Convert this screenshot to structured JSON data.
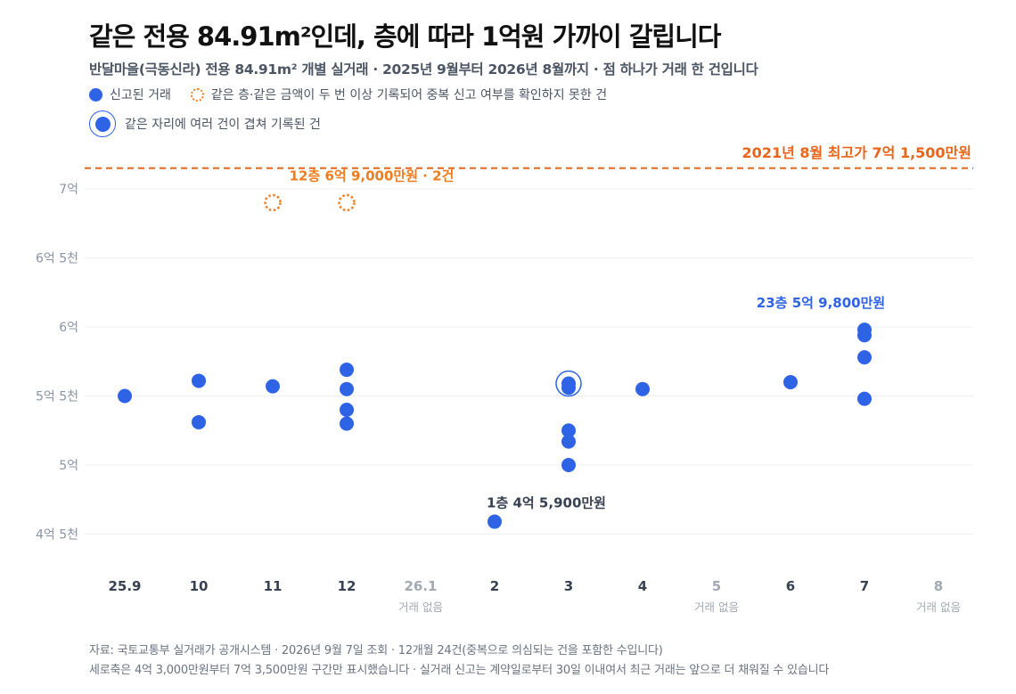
{
  "title": "같은 전용 84.91m²인데, 층에 따라 1억원 가까이 갈립니다",
  "subtitle": "반달마을(극동신라) 전용 84.91m² 개별 실거래 · 2025년 9월부터 2026년 8월까지 · 점 하나가 거래 한 건입니다",
  "legend": [
    {
      "icon": "filled-dot",
      "label": "신고된 거래"
    },
    {
      "icon": "dashed-circle",
      "label": "같은 층·같은 금액이 두 번 이상 기록되어 중복 신고 여부를 확인하지 못한 건"
    },
    {
      "icon": "ringed-dot",
      "label": "같은 자리에 여러 건이 겹쳐 기록된 건"
    }
  ],
  "colors": {
    "reported": "#2f63e6",
    "duplicate": "#ef7d1f",
    "peak": "#e8651a",
    "grid": "#eef0f3"
  },
  "notes": [
    "자료: 국토교통부 실거래가 공개시스템 · 2026년 9월 7일 조회 · 12개월 24건(중복으로 의심되는 건을 포함한 수입니다)",
    "세로축은 4억 3,000만원부터 7억 3,500만원 구간만 표시했습니다 · 실거래 신고는 계약일로부터 30일 이내여서 최근 거래는 앞으로 더 채워질 수 있습니다"
  ],
  "chart_data": {
    "type": "scatter",
    "y_unit": "만원",
    "ylim": [
      43000,
      73500
    ],
    "y_ticks": [
      {
        "value": 45000,
        "label": "4억 5천"
      },
      {
        "value": 50000,
        "label": "5억"
      },
      {
        "value": 55000,
        "label": "5억 5천"
      },
      {
        "value": 60000,
        "label": "6억"
      },
      {
        "value": 65000,
        "label": "6억 5천"
      },
      {
        "value": 70000,
        "label": "7억"
      }
    ],
    "grid": true,
    "categories": [
      {
        "label": "25.9",
        "sublabel": "",
        "has_data": true
      },
      {
        "label": "10",
        "sublabel": "",
        "has_data": true
      },
      {
        "label": "11",
        "sublabel": "",
        "has_data": true
      },
      {
        "label": "12",
        "sublabel": "",
        "has_data": true
      },
      {
        "label": "26.1",
        "sublabel": "거래 없음",
        "has_data": false
      },
      {
        "label": "2",
        "sublabel": "",
        "has_data": true
      },
      {
        "label": "3",
        "sublabel": "",
        "has_data": true
      },
      {
        "label": "4",
        "sublabel": "",
        "has_data": true
      },
      {
        "label": "5",
        "sublabel": "거래 없음",
        "has_data": false
      },
      {
        "label": "6",
        "sublabel": "",
        "has_data": true
      },
      {
        "label": "7",
        "sublabel": "",
        "has_data": true
      },
      {
        "label": "8",
        "sublabel": "거래 없음",
        "has_data": false
      }
    ],
    "points": [
      {
        "month": "25.9",
        "value": 55000,
        "kind": "reported"
      },
      {
        "month": "10",
        "value": 56100,
        "kind": "reported"
      },
      {
        "month": "10",
        "value": 53100,
        "kind": "reported"
      },
      {
        "month": "11",
        "value": 55700,
        "kind": "reported"
      },
      {
        "month": "12",
        "value": 56900,
        "kind": "reported"
      },
      {
        "month": "12",
        "value": 55500,
        "kind": "reported"
      },
      {
        "month": "12",
        "value": 54000,
        "kind": "reported"
      },
      {
        "month": "12",
        "value": 53000,
        "kind": "reported"
      },
      {
        "month": "2",
        "value": 45900,
        "kind": "reported"
      },
      {
        "month": "3",
        "value": 55900,
        "kind": "overlapping"
      },
      {
        "month": "3",
        "value": 55600,
        "kind": "reported"
      },
      {
        "month": "3",
        "value": 52500,
        "kind": "reported"
      },
      {
        "month": "3",
        "value": 51700,
        "kind": "reported"
      },
      {
        "month": "3",
        "value": 50000,
        "kind": "reported"
      },
      {
        "month": "4",
        "value": 55500,
        "kind": "reported"
      },
      {
        "month": "6",
        "value": 56000,
        "kind": "reported"
      },
      {
        "month": "7",
        "value": 59800,
        "kind": "reported"
      },
      {
        "month": "7",
        "value": 59400,
        "kind": "reported"
      },
      {
        "month": "7",
        "value": 57800,
        "kind": "reported"
      },
      {
        "month": "7",
        "value": 54800,
        "kind": "reported"
      },
      {
        "month": "11",
        "value": 69000,
        "kind": "duplicate"
      },
      {
        "month": "12",
        "value": 69000,
        "kind": "duplicate"
      }
    ],
    "reference_line": {
      "value": 71500,
      "label": "2021년 8월 최고가 7억 1,500만원"
    },
    "annotations": [
      {
        "text": "12층 6억 9,000만원 · 2건",
        "month": "12",
        "value": 69000,
        "color": "#ef7d1f"
      },
      {
        "text": "1층 4억 5,900만원",
        "month": "2",
        "value": 45900,
        "color": "#374151"
      },
      {
        "text": "23층 5억 9,800만원",
        "month": "7",
        "value": 59800,
        "color": "#2f63e6"
      }
    ]
  }
}
